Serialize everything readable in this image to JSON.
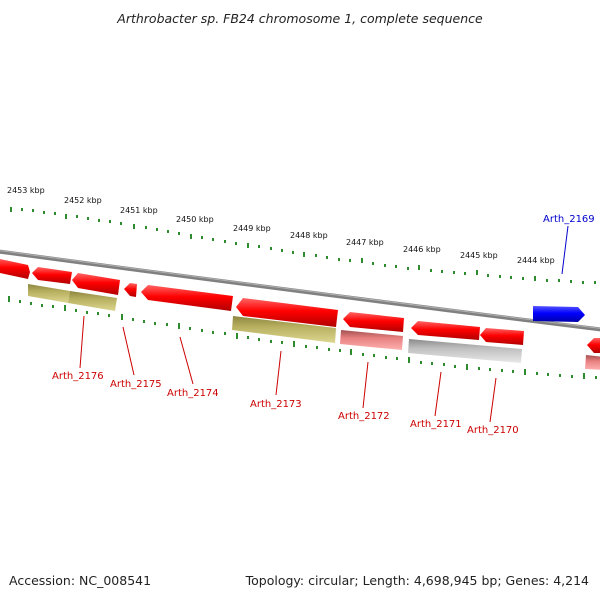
{
  "title": "Arthrobacter sp. FB24 chromosome 1, complete sequence",
  "footer": {
    "accession": "Accession: NC_008541",
    "topology": "Topology: circular; Length: 4,698,945 bp; Genes: 4,214"
  },
  "scale_labels": [
    "2453 kbp",
    "2452 kbp",
    "2451 kbp",
    "2450 kbp",
    "2449 kbp",
    "2448 kbp",
    "2447 kbp",
    "2446 kbp",
    "2445 kbp",
    "2444 kbp"
  ],
  "genes": {
    "arth_2169": "Arth_2169",
    "arth_2170": "Arth_2170",
    "arth_2171": "Arth_2171",
    "arth_2172": "Arth_2172",
    "arth_2173": "Arth_2173",
    "arth_2174": "Arth_2174",
    "arth_2175": "Arth_2175",
    "arth_2176": "Arth_2176"
  },
  "colors": {
    "cds": "#ff0000",
    "cds_light": "#f08080",
    "rna_olive": "#b8b060",
    "rna_grey": "#c0c0c0",
    "highlight": "#0000ff",
    "backbone": "#808080",
    "tick": "#2e8b2e",
    "label_red": "#cc0000",
    "label_blue": "#0000cc"
  }
}
